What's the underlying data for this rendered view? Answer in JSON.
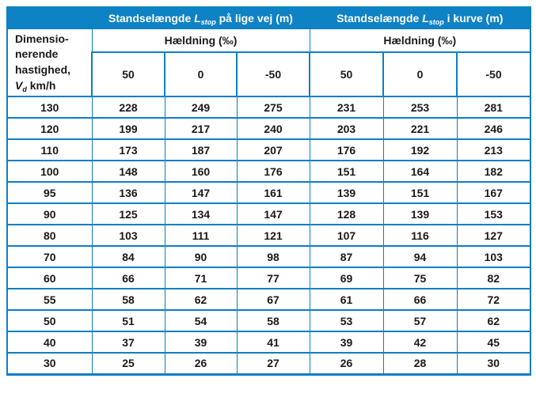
{
  "colors": {
    "header_background": "#0D82C4",
    "grid_border": "#0C7FC2",
    "header_text": "#FFFFFF",
    "body_text": "#1A1A1A"
  },
  "table": {
    "top_headers": [
      {
        "text_before": "Standselængde ",
        "var": "L",
        "sub": "stop",
        "text_after": " på lige vej (m)"
      },
      {
        "text_before": "Standselængde ",
        "var": "L",
        "sub": "stop",
        "text_after": " i kurve (m)"
      }
    ],
    "speed_header": {
      "line1": "Dimensio-",
      "line2": "nerende",
      "line3": "hastighed,",
      "var": "V",
      "sub": "d",
      "unit": " km/h"
    },
    "slope_header_straight": "Hældning (‰)",
    "slope_header_curve": "Hældning (‰)",
    "slope_columns_straight": [
      "50",
      "0",
      "-50"
    ],
    "slope_columns_curve": [
      "50",
      "0",
      "-50"
    ],
    "rows": [
      {
        "speed": "130",
        "straight": [
          "228",
          "249",
          "275"
        ],
        "curve": [
          "231",
          "253",
          "281"
        ]
      },
      {
        "speed": "120",
        "straight": [
          "199",
          "217",
          "240"
        ],
        "curve": [
          "203",
          "221",
          "246"
        ]
      },
      {
        "speed": "110",
        "straight": [
          "173",
          "187",
          "207"
        ],
        "curve": [
          "176",
          "192",
          "213"
        ]
      },
      {
        "speed": "100",
        "straight": [
          "148",
          "160",
          "176"
        ],
        "curve": [
          "151",
          "164",
          "182"
        ]
      },
      {
        "speed": "95",
        "straight": [
          "136",
          "147",
          "161"
        ],
        "curve": [
          "139",
          "151",
          "167"
        ]
      },
      {
        "speed": "90",
        "straight": [
          "125",
          "134",
          "147"
        ],
        "curve": [
          "128",
          "139",
          "153"
        ]
      },
      {
        "speed": "80",
        "straight": [
          "103",
          "111",
          "121"
        ],
        "curve": [
          "107",
          "116",
          "127"
        ]
      },
      {
        "speed": "70",
        "straight": [
          "84",
          "90",
          "98"
        ],
        "curve": [
          "87",
          "94",
          "103"
        ]
      },
      {
        "speed": "60",
        "straight": [
          "66",
          "71",
          "77"
        ],
        "curve": [
          "69",
          "75",
          "82"
        ]
      },
      {
        "speed": "55",
        "straight": [
          "58",
          "62",
          "67"
        ],
        "curve": [
          "61",
          "66",
          "72"
        ]
      },
      {
        "speed": "50",
        "straight": [
          "51",
          "54",
          "58"
        ],
        "curve": [
          "53",
          "57",
          "62"
        ]
      },
      {
        "speed": "40",
        "straight": [
          "37",
          "39",
          "41"
        ],
        "curve": [
          "39",
          "42",
          "45"
        ]
      },
      {
        "speed": "30",
        "straight": [
          "25",
          "26",
          "27"
        ],
        "curve": [
          "26",
          "28",
          "30"
        ]
      }
    ]
  }
}
